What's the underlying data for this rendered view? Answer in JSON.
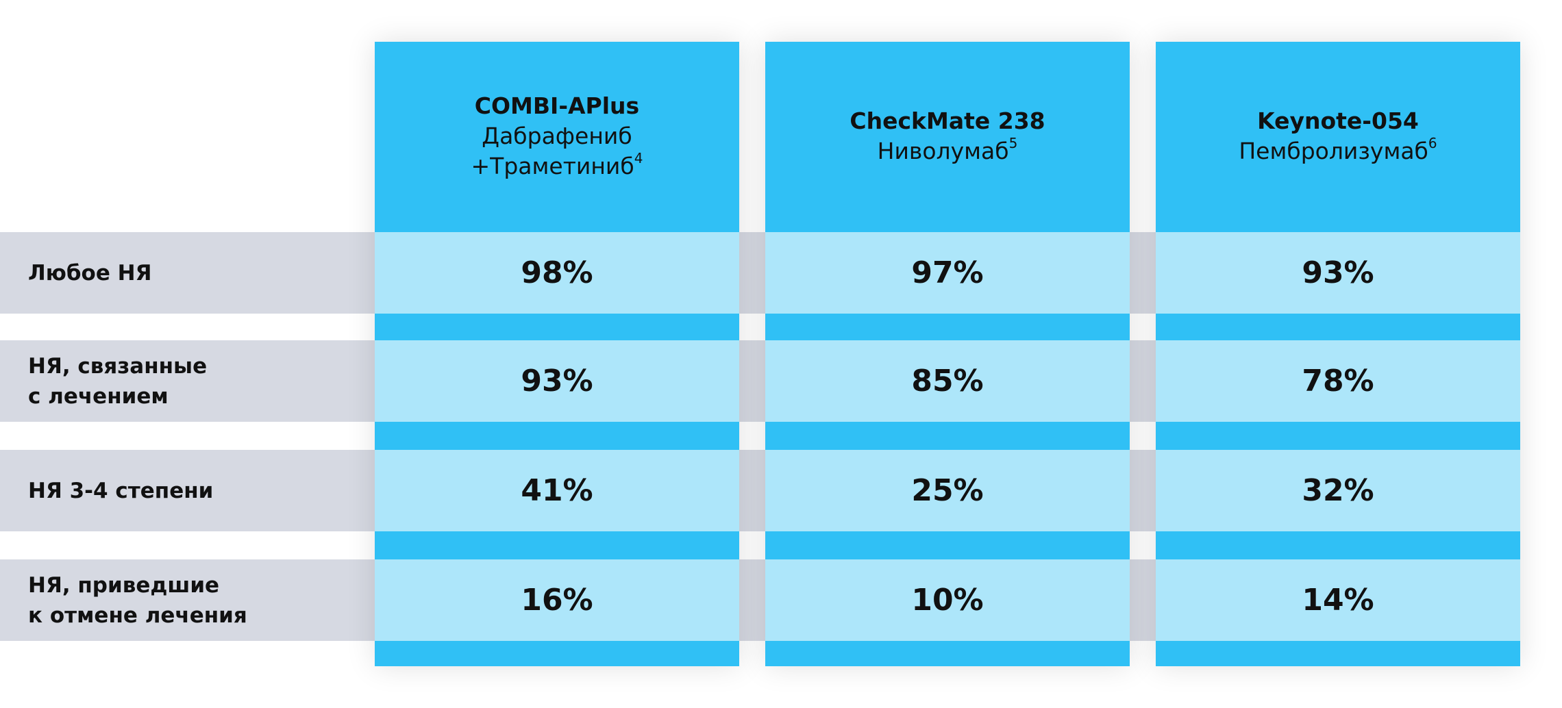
{
  "columns": [
    {
      "title": "COMBI-APlus",
      "lines": [
        "Дабрафениб",
        "+Траметиниб"
      ],
      "ref": "4"
    },
    {
      "title": "CheckMate 238",
      "lines": [
        "Ниволумаб"
      ],
      "ref": "5"
    },
    {
      "title": "Keynote-054",
      "lines": [
        "Пембролизумаб"
      ],
      "ref": "6"
    }
  ],
  "rows": [
    {
      "label": [
        "Любое НЯ"
      ],
      "values": [
        "98%",
        "97%",
        "93%"
      ]
    },
    {
      "label": [
        "НЯ, связанные",
        "с лечением"
      ],
      "values": [
        "93%",
        "85%",
        "78%"
      ]
    },
    {
      "label": [
        "НЯ 3-4 степени"
      ],
      "values": [
        "41%",
        "25%",
        "32%"
      ]
    },
    {
      "label": [
        "НЯ, приведшие",
        "к отмене лечения"
      ],
      "values": [
        "16%",
        "10%",
        "14%"
      ]
    }
  ]
}
